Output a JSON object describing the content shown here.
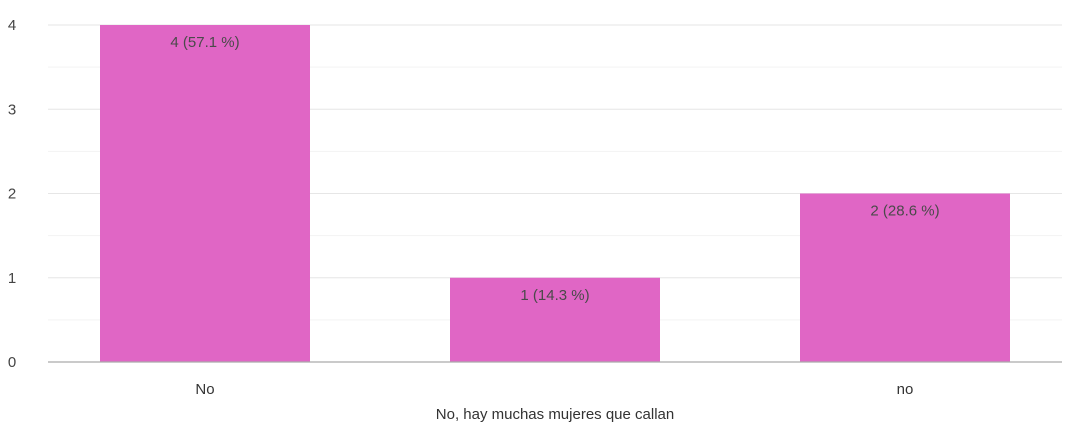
{
  "chart_data": {
    "type": "bar",
    "categories": [
      "No",
      "No, hay muchas mujeres que callan",
      "no"
    ],
    "values": [
      4,
      1,
      2
    ],
    "data_labels": [
      "4 (57.1 %)",
      "1 (14.3 %)",
      "2 (28.6 %)"
    ],
    "ylim": [
      0,
      4
    ],
    "yticks": [
      0,
      1,
      2,
      3,
      4
    ],
    "grid": true,
    "legend": "none",
    "title": "",
    "xlabel": "",
    "ylabel": "",
    "colors": {
      "bar": "#e066c5",
      "grid_major": "#e6e6e6",
      "grid_minor": "#f3f3f3",
      "axis": "#aaaaaa"
    }
  }
}
